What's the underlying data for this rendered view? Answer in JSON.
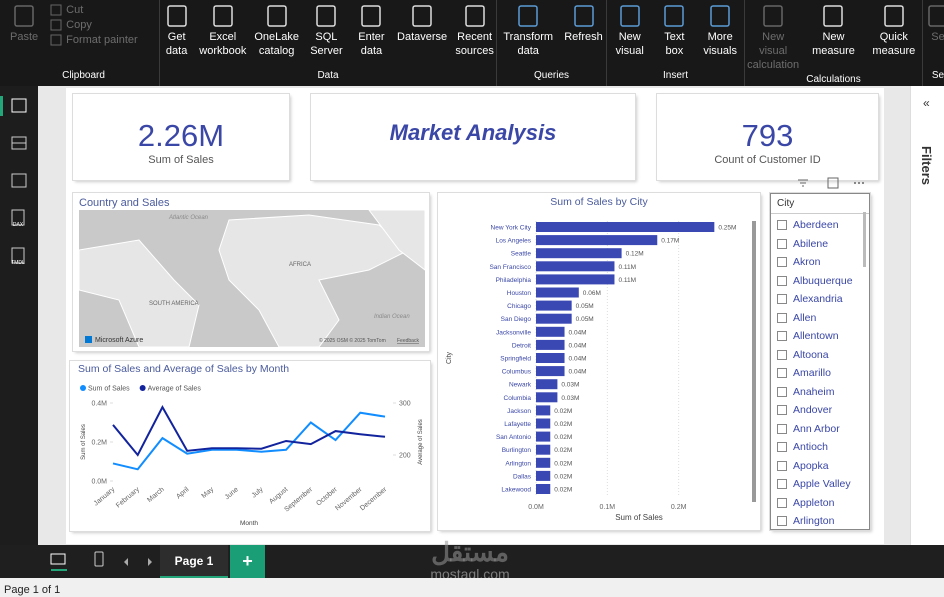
{
  "ribbon": {
    "groups": [
      {
        "name": "Clipboard",
        "buttons": [
          "Paste"
        ],
        "small_buttons": [
          "Cut",
          "Copy",
          "Format painter"
        ]
      },
      {
        "name": "Data",
        "buttons": [
          "Get data",
          "Excel workbook",
          "OneLake catalog",
          "SQL Server",
          "Enter data",
          "Dataverse",
          "Recent sources"
        ]
      },
      {
        "name": "Queries",
        "buttons": [
          "Transform data",
          "Refresh"
        ]
      },
      {
        "name": "Insert",
        "buttons": [
          "New visual",
          "Text box",
          "More visuals"
        ]
      },
      {
        "name": "Calculations",
        "buttons": [
          "New visual calculation",
          "New measure",
          "Quick measure"
        ]
      },
      {
        "name": "Se",
        "buttons": [
          "Se"
        ]
      }
    ]
  },
  "left_nav": {
    "items": [
      "DAX",
      "TMDL"
    ]
  },
  "cards": [
    {
      "value": "2.26M",
      "label": "Sum of Sales"
    },
    {
      "title": "Market Analysis"
    },
    {
      "value": "793",
      "label": "Count of Customer ID"
    }
  ],
  "map": {
    "title": "Country and Sales",
    "labels": [
      "Atlantic Ocean",
      "AFRICA",
      "SOUTH AMERICA",
      "Indian Ocean"
    ],
    "brand": "Microsoft Azure",
    "attribution": "© 2025 OSM © 2025 TomTom",
    "feedback": "Feedback"
  },
  "chart_data": [
    {
      "type": "line",
      "title": "Sum of Sales and Average of Sales by Month",
      "categories": [
        "January",
        "February",
        "March",
        "April",
        "May",
        "June",
        "July",
        "August",
        "September",
        "October",
        "November",
        "December"
      ],
      "series": [
        {
          "name": "Sum of Sales",
          "color": "#118dff",
          "values": [
            90000,
            60000,
            220000,
            140000,
            160000,
            160000,
            150000,
            160000,
            300000,
            210000,
            350000,
            330000
          ]
        },
        {
          "name": "Average of Sales",
          "color": "#12239e",
          "axis": "y2",
          "values": [
            258,
            200,
            292,
            208,
            213,
            213,
            212,
            227,
            221,
            246,
            240,
            235
          ]
        }
      ],
      "ylim": [
        0,
        400000
      ],
      "yticks": [
        {
          "value": 0,
          "label": "0.0M"
        },
        {
          "value": 200000,
          "label": "0.2M"
        },
        {
          "value": 400000,
          "label": "0.4M"
        }
      ],
      "y2lim": [
        150,
        300
      ],
      "y2ticks": [
        200,
        300
      ],
      "x_label": "Month",
      "y_label": "Sum of Sales",
      "y2_label": "Average of Sales",
      "legend": "top-left"
    },
    {
      "type": "bar",
      "orientation": "horizontal",
      "title": "Sum of Sales by City",
      "categories": [
        "New York City",
        "Los Angeles",
        "Seattle",
        "San Francisco",
        "Philadelphia",
        "Houston",
        "Chicago",
        "San Diego",
        "Jacksonville",
        "Detroit",
        "Springfield",
        "Columbus",
        "Newark",
        "Columbia",
        "Jackson",
        "Lafayette",
        "San Antonio",
        "Burlington",
        "Arlington",
        "Dallas",
        "Lakewood"
      ],
      "values": [
        250000,
        170000,
        120000,
        110000,
        110000,
        60000,
        50000,
        50000,
        40000,
        40000,
        40000,
        40000,
        30000,
        30000,
        20000,
        20000,
        20000,
        20000,
        20000,
        20000,
        20000
      ],
      "value_labels": [
        "0.25M",
        "0.17M",
        "0.12M",
        "0.11M",
        "0.11M",
        "0.06M",
        "0.05M",
        "0.05M",
        "0.04M",
        "0.04M",
        "0.04M",
        "0.04M",
        "0.03M",
        "0.03M",
        "0.02M",
        "0.02M",
        "0.02M",
        "0.02M",
        "0.02M",
        "0.02M",
        "0.02M"
      ],
      "color": "#3a48b4",
      "xlim": [
        0,
        300000
      ],
      "xticks": [
        {
          "value": 0,
          "label": "0.0M"
        },
        {
          "value": 100000,
          "label": "0.1M"
        },
        {
          "value": 200000,
          "label": "0.2M"
        }
      ],
      "x_label": "Sum of Sales",
      "y_label": "City",
      "grid": true
    }
  ],
  "slicer": {
    "title": "City",
    "items": [
      "Aberdeen",
      "Abilene",
      "Akron",
      "Albuquerque",
      "Alexandria",
      "Allen",
      "Allentown",
      "Altoona",
      "Amarillo",
      "Anaheim",
      "Andover",
      "Ann Arbor",
      "Antioch",
      "Apopka",
      "Apple Valley",
      "Appleton",
      "Arlington"
    ]
  },
  "filters_pane": {
    "title": "Filters"
  },
  "page_tabs": {
    "tabs": [
      "Page 1"
    ],
    "add": "+"
  },
  "watermark": {
    "arabic": "مستقل",
    "latin": "mostaql.com"
  },
  "status_bar": {
    "page": "Page 1 of 1"
  }
}
